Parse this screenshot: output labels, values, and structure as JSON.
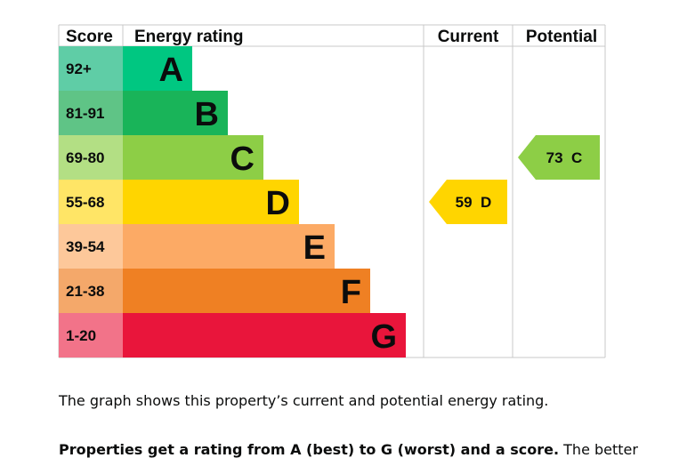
{
  "chart_data": {
    "type": "bar",
    "columns": {
      "score": "Score",
      "rating": "Energy rating",
      "current": "Current",
      "potential": "Potential"
    },
    "bands": [
      {
        "letter": "A",
        "range": "92+",
        "color": "#00c781",
        "score_color": "#5fcda6"
      },
      {
        "letter": "B",
        "range": "81-91",
        "color": "#19b459",
        "score_color": "#5fc486"
      },
      {
        "letter": "C",
        "range": "69-80",
        "color": "#8dce46",
        "score_color": "#b3df84"
      },
      {
        "letter": "D",
        "range": "55-68",
        "color": "#ffd500",
        "score_color": "#ffe566"
      },
      {
        "letter": "E",
        "range": "39-54",
        "color": "#fcaa65",
        "score_color": "#fdc89a"
      },
      {
        "letter": "F",
        "range": "21-38",
        "color": "#ef8023",
        "score_color": "#f4a86a"
      },
      {
        "letter": "G",
        "range": "1-20",
        "color": "#e9153b",
        "score_color": "#f27389"
      }
    ],
    "current": {
      "score": 59,
      "band": "D",
      "label": "59  D",
      "color": "#ffd500"
    },
    "potential": {
      "score": 73,
      "band": "C",
      "label": "73  C",
      "color": "#8dce46"
    }
  },
  "text": {
    "desc1": "The graph shows this property’s current and potential energy rating.",
    "desc2_bold": "Properties get a rating from A (best) to G (worst) and a score.",
    "desc2_rest": " The better"
  }
}
